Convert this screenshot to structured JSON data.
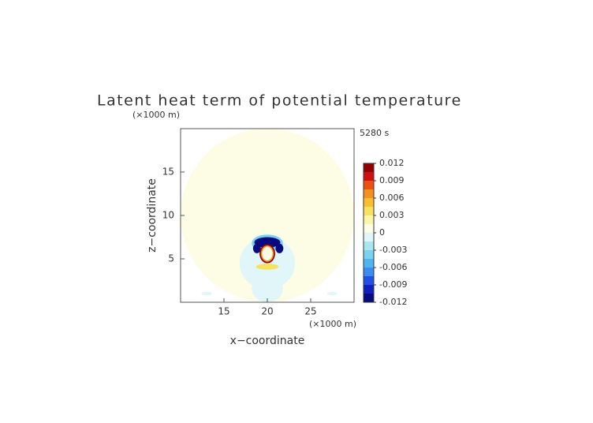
{
  "chart_data": {
    "type": "heatmap",
    "title": "Latent heat term of potential temperature",
    "time_label": "5280 s",
    "xlabel": "x−coordinate",
    "xunit": "(×1000 m)",
    "ylabel": "z−coordinate",
    "yunit": "(×1000 m)",
    "xlim": [
      10,
      30
    ],
    "xticks": [
      15,
      20,
      25
    ],
    "ylim": [
      0,
      20
    ],
    "yticks": [
      5,
      10,
      15
    ],
    "colorbar": {
      "lim": [
        -0.012,
        0.012
      ],
      "ticks": [
        0.012,
        0.009,
        0.006,
        0.003,
        0,
        -0.003,
        -0.006,
        -0.009,
        -0.012
      ],
      "colors": [
        "#0a0a80",
        "#1020c0",
        "#2050e8",
        "#3c8cf0",
        "#50b4f0",
        "#78d2f0",
        "#a8e6f0",
        "#e0f6f8",
        "#fdfde6",
        "#fbf5a8",
        "#f8e060",
        "#f8c030",
        "#f49020",
        "#ee5010",
        "#d01010",
        "#900000"
      ]
    },
    "field": [
      {
        "x": 20,
        "z": 10,
        "rx": 10,
        "rz": 10,
        "value": 0.0005
      },
      {
        "x": 20,
        "z": 4.5,
        "rx": 3.2,
        "rz": 3.0,
        "value": -0.001
      },
      {
        "x": 20,
        "z": 1.5,
        "rx": 1.8,
        "rz": 1.5,
        "value": -0.001
      },
      {
        "x": 20,
        "z": 6.8,
        "rx": 1.8,
        "rz": 1.0,
        "value": -0.004
      },
      {
        "x": 20,
        "z": 6.9,
        "rx": 1.5,
        "rz": 0.6,
        "value": -0.011
      },
      {
        "x": 20,
        "z": 4.1,
        "rx": 1.3,
        "rz": 0.35,
        "value": 0.004
      },
      {
        "x": 18.8,
        "z": 6.2,
        "rx": 0.45,
        "rz": 0.55,
        "value": -0.012
      },
      {
        "x": 21.4,
        "z": 6.2,
        "rx": 0.45,
        "rz": 0.55,
        "value": -0.012
      },
      {
        "x": 20,
        "z": 5.6,
        "rx": 0.9,
        "rz": 1.1,
        "value": 0.012
      },
      {
        "x": 20,
        "z": 5.6,
        "rx": 0.75,
        "rz": 0.95,
        "value": 0.007
      },
      {
        "x": 20,
        "z": 5.6,
        "rx": 0.6,
        "rz": 0.8,
        "value": 0
      },
      {
        "x": 13,
        "z": 1.0,
        "rx": 0.6,
        "rz": 0.2,
        "value": -0.001
      },
      {
        "x": 27.5,
        "z": 1.0,
        "rx": 0.6,
        "rz": 0.2,
        "value": -0.001
      }
    ]
  }
}
